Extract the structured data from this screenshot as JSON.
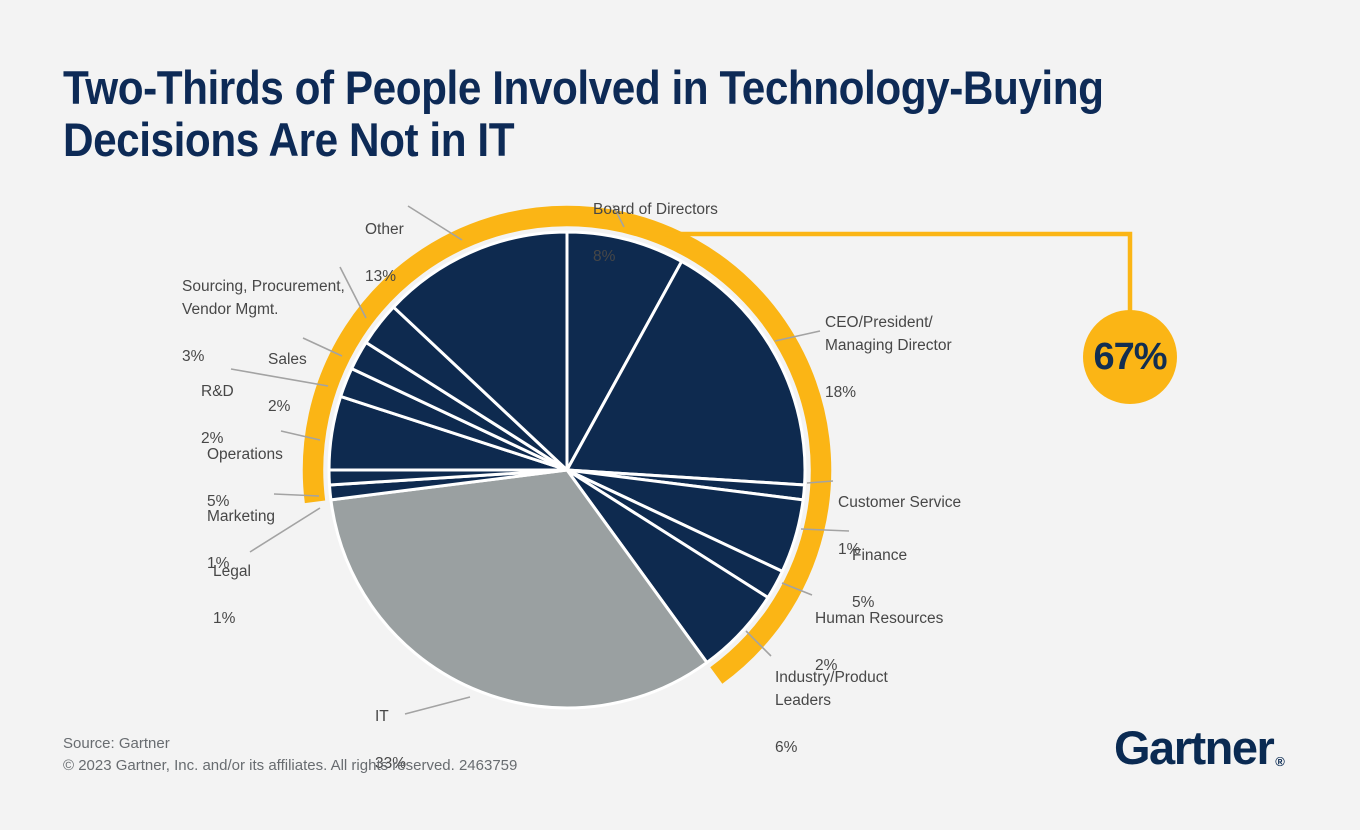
{
  "page": {
    "title": "Two-Thirds of People Involved in Technology-Buying\nDecisions Are Not in IT",
    "footer": {
      "source_line": "Source: Gartner",
      "copyright_line": "© 2023 Gartner, Inc. and/or its affiliates. All rights reserved. 2463759"
    },
    "brand": {
      "logo_text": "Gartner",
      "registered_mark": "®"
    }
  },
  "colors": {
    "navy": "#0e2a4f",
    "gray": "#9aa0a1",
    "yellow": "#fbb515",
    "title_navy": "#0d2a56",
    "label_gray": "#474747",
    "leader_gray": "#a3a3a3",
    "footer_gray": "#686c70",
    "background": "#f3f3f3",
    "divider_white": "#ffffff"
  },
  "chart_data": {
    "type": "pie",
    "title": "Two-Thirds of People Involved in Technology-Buying Decisions Are Not in IT",
    "direction": "clockwise",
    "start_angle_deg": 0,
    "callout_badge": "67%",
    "highlight_ring": {
      "color": "yellow",
      "excludes_slice": "IT",
      "total_pct": 67
    },
    "slices": [
      {
        "label": "Board of Directors",
        "pct": "8%",
        "value": 8,
        "color": "navy"
      },
      {
        "label": "CEO/President/\nManaging Director",
        "pct": "18%",
        "value": 18,
        "color": "navy"
      },
      {
        "label": "Customer Service",
        "pct": "1%",
        "value": 1,
        "color": "navy"
      },
      {
        "label": "Finance",
        "pct": "5%",
        "value": 5,
        "color": "navy"
      },
      {
        "label": "Human Resources",
        "pct": "2%",
        "value": 2,
        "color": "navy"
      },
      {
        "label": "Industry/Product\nLeaders",
        "pct": "6%",
        "value": 6,
        "color": "navy"
      },
      {
        "label": "IT",
        "pct": "33%",
        "value": 33,
        "color": "gray"
      },
      {
        "label": "Legal",
        "pct": "1%",
        "value": 1,
        "color": "navy"
      },
      {
        "label": "Marketing",
        "pct": "1%",
        "value": 1,
        "color": "navy"
      },
      {
        "label": "Operations",
        "pct": "5%",
        "value": 5,
        "color": "navy"
      },
      {
        "label": "R&D",
        "pct": "2%",
        "value": 2,
        "color": "navy"
      },
      {
        "label": "Sales",
        "pct": "2%",
        "value": 2,
        "color": "navy"
      },
      {
        "label": "Sourcing, Procurement,\nVendor Mgmt.",
        "pct": "3%",
        "value": 3,
        "color": "navy"
      },
      {
        "label": "Other",
        "pct": "13%",
        "value": 13,
        "color": "navy"
      }
    ]
  }
}
